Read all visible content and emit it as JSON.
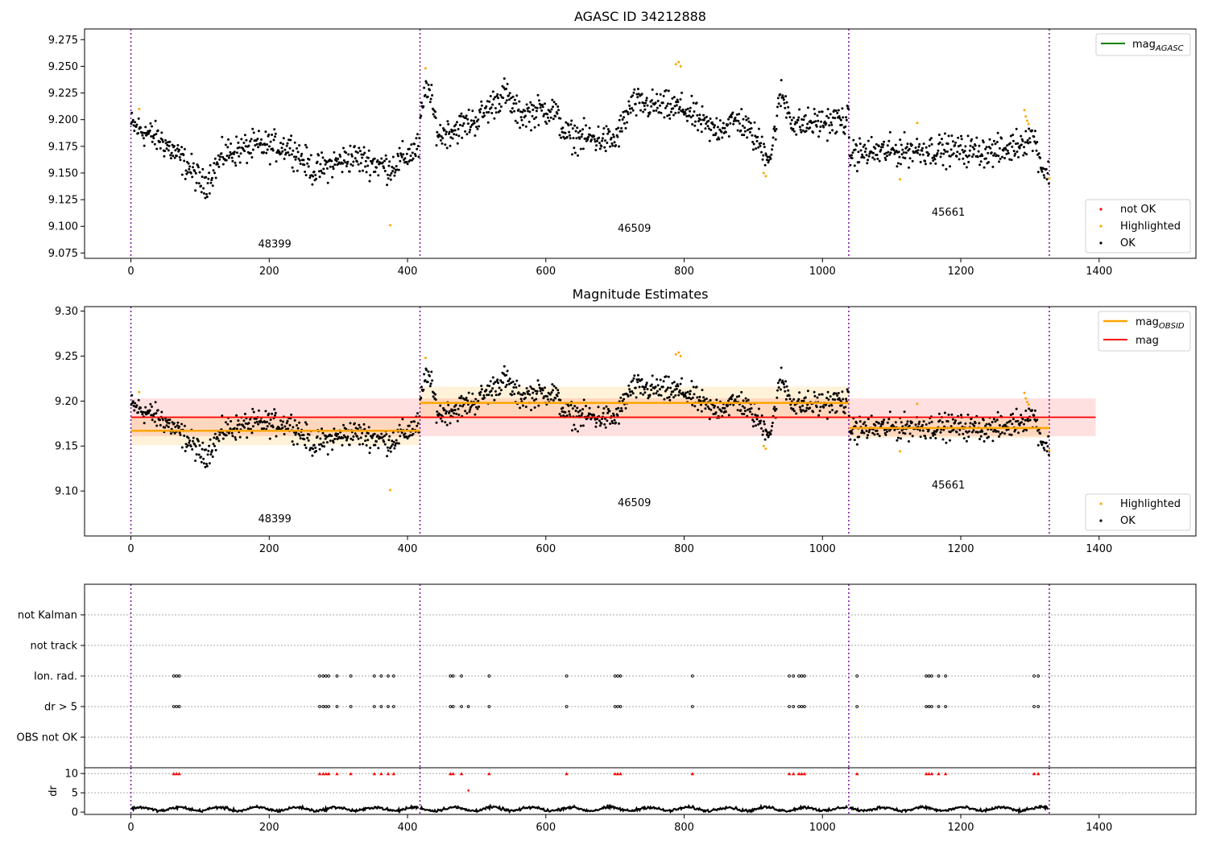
{
  "chart_data": [
    {
      "type": "scatter",
      "title": "AGASC ID 34212888",
      "xlim": [
        -67,
        1540
      ],
      "ylim": [
        9.07,
        9.285
      ],
      "x_ticks": [
        0,
        200,
        400,
        600,
        800,
        1000,
        1200,
        1400
      ],
      "y_ticks": [
        9.075,
        9.1,
        9.125,
        9.15,
        9.175,
        9.2,
        9.225,
        9.25,
        9.275
      ],
      "y_tick_labels": [
        "9.075",
        "9.100",
        "9.125",
        "9.150",
        "9.175",
        "9.200",
        "9.225",
        "9.250",
        "9.275"
      ],
      "obs_boundaries": [
        0,
        418,
        1038,
        1328
      ],
      "obs_labels": [
        {
          "text": "48399",
          "x": 208,
          "y": 9.08
        },
        {
          "text": "46509",
          "x": 728,
          "y": 9.095
        },
        {
          "text": "45661",
          "x": 1182,
          "y": 9.11
        }
      ],
      "legend_lines": [
        {
          "name": "mag",
          "sub": "AGASC",
          "color": "#008000"
        }
      ],
      "legend_points": [
        {
          "name": "not OK",
          "color": "#ff0000"
        },
        {
          "name": "Highlighted",
          "color": "#ffa500"
        },
        {
          "name": "OK",
          "color": "#000000"
        }
      ],
      "segments": [
        {
          "x0": 0,
          "x1": 418,
          "levels": [
            [
              0,
              9.195
            ],
            [
              45,
              9.18
            ],
            [
              85,
              9.155
            ],
            [
              105,
              9.138
            ],
            [
              135,
              9.168
            ],
            [
              180,
              9.175
            ],
            [
              230,
              9.175
            ],
            [
              265,
              9.152
            ],
            [
              320,
              9.165
            ],
            [
              375,
              9.155
            ],
            [
              418,
              9.175
            ]
          ]
        },
        {
          "x0": 418,
          "x1": 1038,
          "levels": [
            [
              418,
              9.195
            ],
            [
              428,
              9.235
            ],
            [
              445,
              9.185
            ],
            [
              500,
              9.2
            ],
            [
              540,
              9.225
            ],
            [
              560,
              9.205
            ],
            [
              610,
              9.21
            ],
            [
              630,
              9.185
            ],
            [
              700,
              9.18
            ],
            [
              725,
              9.215
            ],
            [
              800,
              9.21
            ],
            [
              840,
              9.19
            ],
            [
              880,
              9.2
            ],
            [
              925,
              9.165
            ],
            [
              940,
              9.225
            ],
            [
              960,
              9.195
            ],
            [
              1038,
              9.2
            ]
          ]
        },
        {
          "x0": 1038,
          "x1": 1328,
          "levels": [
            [
              1038,
              9.168
            ],
            [
              1140,
              9.172
            ],
            [
              1260,
              9.17
            ],
            [
              1305,
              9.185
            ],
            [
              1318,
              9.155
            ],
            [
              1328,
              9.148
            ]
          ]
        }
      ],
      "highlighted": [
        [
          12,
          9.21
        ],
        [
          375,
          9.101
        ],
        [
          426,
          9.248
        ],
        [
          788,
          9.252
        ],
        [
          792,
          9.254
        ],
        [
          795,
          9.25
        ],
        [
          915,
          9.15
        ],
        [
          918,
          9.147
        ],
        [
          1112,
          9.144
        ],
        [
          1137,
          9.197
        ],
        [
          1292,
          9.209
        ],
        [
          1294,
          9.203
        ],
        [
          1296,
          9.199
        ],
        [
          1298,
          9.196
        ],
        [
          1328,
          9.145
        ]
      ]
    },
    {
      "type": "scatter",
      "title": "Magnitude Estimates",
      "xlim": [
        -67,
        1540
      ],
      "ylim": [
        9.05,
        9.305
      ],
      "x_ticks": [
        0,
        200,
        400,
        600,
        800,
        1000,
        1200,
        1400
      ],
      "y_ticks": [
        9.1,
        9.15,
        9.2,
        9.25,
        9.3
      ],
      "y_tick_labels": [
        "9.10",
        "9.15",
        "9.20",
        "9.25",
        "9.30"
      ],
      "obs_boundaries": [
        0,
        418,
        1038,
        1328
      ],
      "obs_labels": [
        {
          "text": "48399",
          "x": 208,
          "y": 9.065
        },
        {
          "text": "46509",
          "x": 728,
          "y": 9.083
        },
        {
          "text": "45661",
          "x": 1182,
          "y": 9.103
        }
      ],
      "mag": {
        "value": 9.182,
        "band": [
          9.161,
          9.203
        ],
        "x_range": [
          0,
          1395
        ],
        "color": "#ff0000"
      },
      "mag_obsid": [
        {
          "x0": 0,
          "x1": 418,
          "value": 9.167,
          "band": [
            9.151,
            9.183
          ]
        },
        {
          "x0": 418,
          "x1": 1038,
          "value": 9.198,
          "band": [
            9.18,
            9.216
          ]
        },
        {
          "x0": 1038,
          "x1": 1328,
          "value": 9.17,
          "band": [
            9.159,
            9.181
          ]
        }
      ],
      "legend_lines": [
        {
          "name": "mag",
          "sub": "OBSID",
          "color": "#ffa500"
        },
        {
          "name": "mag",
          "sub": "",
          "color": "#ff0000"
        }
      ],
      "legend_points": [
        {
          "name": "Highlighted",
          "color": "#ffa500"
        },
        {
          "name": "OK",
          "color": "#000000"
        }
      ]
    },
    {
      "type": "scatter",
      "title": "",
      "xlim": [
        -67,
        1540
      ],
      "categories": [
        "not Kalman",
        "not track",
        "Ion. rad.",
        "dr > 5",
        "OBS not OK"
      ],
      "flag_x": {
        "Ion. rad.": [
          62,
          66,
          70,
          273,
          278,
          282,
          286,
          298,
          318,
          352,
          362,
          372,
          380,
          462,
          466,
          478,
          518,
          630,
          700,
          704,
          708,
          812,
          952,
          958,
          966,
          970,
          974,
          1050,
          1150,
          1154,
          1158,
          1168,
          1178,
          1306,
          1312
        ],
        "dr > 5": [
          62,
          66,
          70,
          273,
          278,
          282,
          286,
          298,
          318,
          352,
          362,
          372,
          380,
          462,
          466,
          478,
          488,
          518,
          630,
          700,
          704,
          708,
          812,
          952,
          958,
          966,
          970,
          974,
          1050,
          1150,
          1154,
          1158,
          1168,
          1178,
          1306,
          1312
        ]
      },
      "obs_boundaries": [
        0,
        418,
        1038,
        1328
      ]
    },
    {
      "type": "scatter",
      "title": "",
      "ylabel": "dr",
      "xlim": [
        -67,
        1540
      ],
      "ylim": [
        -0.6,
        11.5
      ],
      "x_ticks": [
        0,
        200,
        400,
        600,
        800,
        1000,
        1200,
        1400
      ],
      "y_ticks": [
        0,
        5,
        10
      ],
      "y_tick_labels": [
        "0",
        "5",
        "10"
      ],
      "obs_boundaries": [
        0,
        418,
        1038,
        1328
      ],
      "clipped_x": [
        62,
        66,
        70,
        273,
        278,
        282,
        286,
        298,
        318,
        352,
        362,
        372,
        380,
        462,
        466,
        478,
        518,
        630,
        700,
        704,
        708,
        812,
        952,
        958,
        966,
        970,
        974,
        1050,
        1150,
        1154,
        1158,
        1168,
        1178,
        1306,
        1312
      ],
      "outliers": [
        [
          488,
          5.6
        ]
      ],
      "clip_value": 10
    }
  ]
}
